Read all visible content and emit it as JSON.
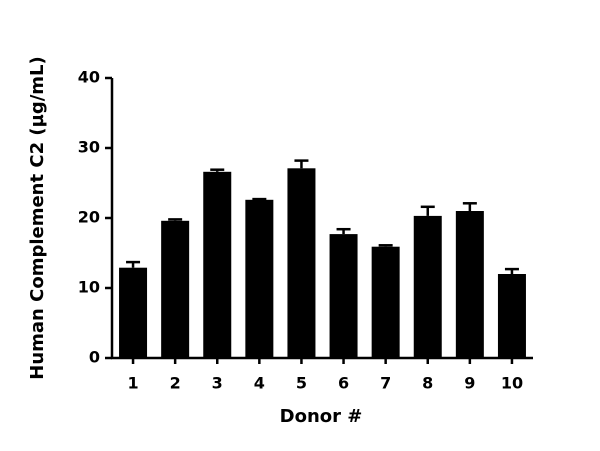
{
  "chart_data": {
    "type": "bar",
    "y_label": "Human Complement C2 (µg/mL)",
    "x_label": "Donor #",
    "categories": [
      "1",
      "2",
      "3",
      "4",
      "5",
      "6",
      "7",
      "8",
      "9",
      "10"
    ],
    "values": [
      12.9,
      19.6,
      26.6,
      22.6,
      27.1,
      17.7,
      15.9,
      20.3,
      21.0,
      12.0
    ],
    "errors": [
      0.8,
      0.2,
      0.3,
      0.1,
      1.1,
      0.7,
      0.2,
      1.3,
      1.1,
      0.7
    ],
    "color": "#000000",
    "ylim": [
      0,
      40
    ],
    "yticks": [
      0,
      10,
      20,
      30,
      40
    ]
  }
}
